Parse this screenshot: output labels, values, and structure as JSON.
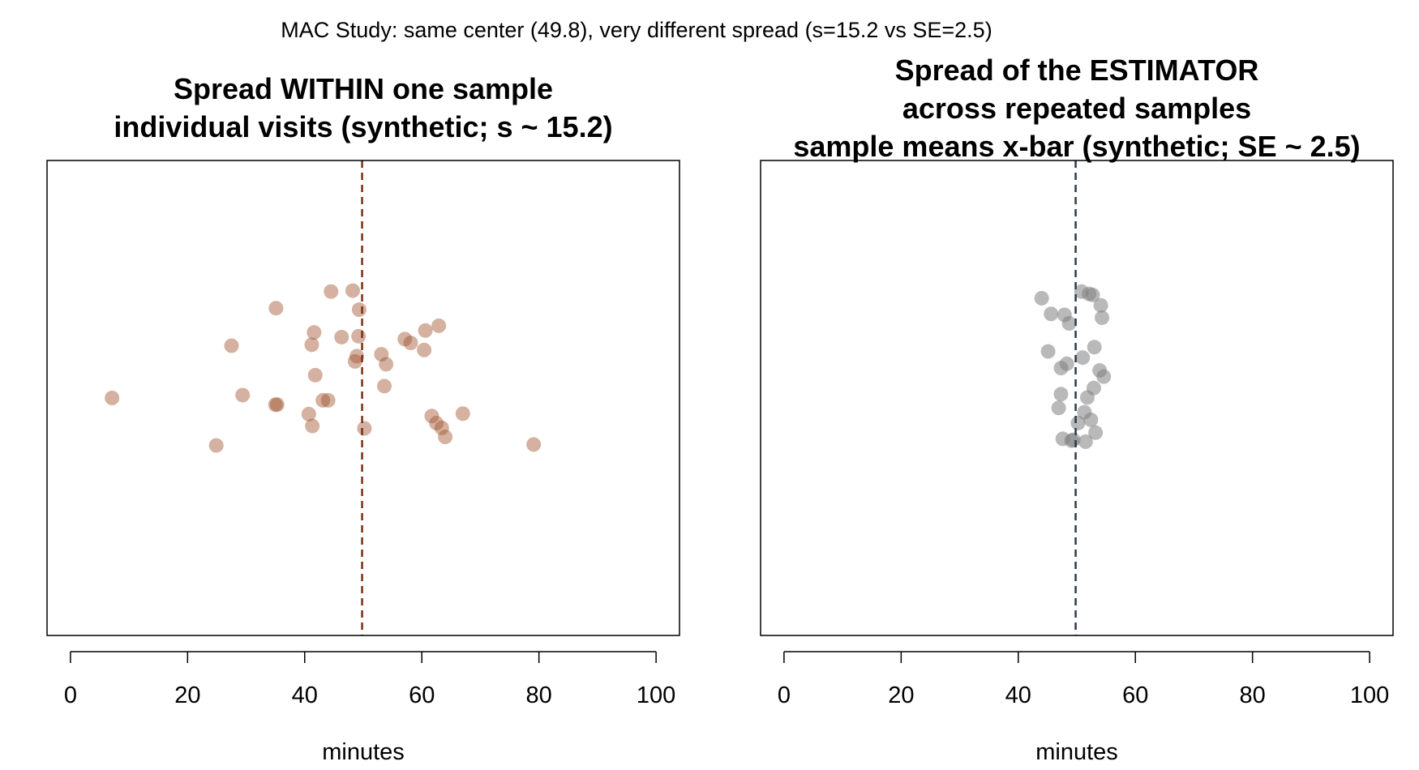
{
  "suptitle": "MAC Study: same center (49.8), very different spread (s=15.2 vs SE=2.5)",
  "chart_data": [
    {
      "type": "scatter",
      "title_lines": [
        "Spread WITHIN one sample",
        "individual visits (synthetic; s ~ 15.2)"
      ],
      "xlabel": "minutes",
      "ylabel": "",
      "xlim": [
        -4,
        104
      ],
      "x_ticks": [
        0,
        20,
        40,
        60,
        80,
        100
      ],
      "grid": false,
      "point_color": "#a0522d",
      "point_alpha": 0.45,
      "reference_line": {
        "x": 49.8,
        "color": "#7a2e12",
        "style": "dashed"
      },
      "points": [
        {
          "x": 7.1,
          "y": 0.0
        },
        {
          "x": 24.9,
          "y": -0.1
        },
        {
          "x": 27.5,
          "y": 0.11
        },
        {
          "x": 29.4,
          "y": 0.006
        },
        {
          "x": 35.1,
          "y": 0.189
        },
        {
          "x": 35.0,
          "y": -0.014
        },
        {
          "x": 35.3,
          "y": -0.014
        },
        {
          "x": 40.7,
          "y": -0.034
        },
        {
          "x": 41.3,
          "y": -0.059
        },
        {
          "x": 41.2,
          "y": 0.112
        },
        {
          "x": 41.6,
          "y": 0.138
        },
        {
          "x": 41.8,
          "y": 0.048
        },
        {
          "x": 43.1,
          "y": -0.005
        },
        {
          "x": 44.0,
          "y": -0.005
        },
        {
          "x": 44.5,
          "y": 0.224
        },
        {
          "x": 46.3,
          "y": 0.128
        },
        {
          "x": 48.2,
          "y": 0.226
        },
        {
          "x": 48.6,
          "y": 0.077
        },
        {
          "x": 48.9,
          "y": 0.088
        },
        {
          "x": 49.2,
          "y": 0.13
        },
        {
          "x": 49.3,
          "y": 0.186
        },
        {
          "x": 50.2,
          "y": -0.064
        },
        {
          "x": 53.1,
          "y": 0.092
        },
        {
          "x": 53.6,
          "y": 0.025
        },
        {
          "x": 53.9,
          "y": 0.071
        },
        {
          "x": 57.1,
          "y": 0.124
        },
        {
          "x": 58.1,
          "y": 0.116
        },
        {
          "x": 60.4,
          "y": 0.101
        },
        {
          "x": 60.6,
          "y": 0.142
        },
        {
          "x": 62.9,
          "y": 0.152
        },
        {
          "x": 61.7,
          "y": -0.038
        },
        {
          "x": 62.5,
          "y": -0.053
        },
        {
          "x": 63.4,
          "y": -0.063
        },
        {
          "x": 64.0,
          "y": -0.082
        },
        {
          "x": 67.0,
          "y": -0.033
        },
        {
          "x": 79.1,
          "y": -0.098
        }
      ]
    },
    {
      "type": "scatter",
      "title_lines": [
        "Spread of the ESTIMATOR",
        "across repeated samples",
        "sample means x-bar (synthetic; SE ~ 2.5)"
      ],
      "xlabel": "minutes",
      "ylabel": "",
      "xlim": [
        -4,
        104
      ],
      "x_ticks": [
        0,
        20,
        40,
        60,
        80,
        100
      ],
      "grid": false,
      "point_color": "#808080",
      "point_alpha": 0.55,
      "reference_line": {
        "x": 49.8,
        "color": "#2b3a4a",
        "style": "dashed"
      },
      "points": [
        {
          "x": 44.0,
          "y": 0.21
        },
        {
          "x": 45.1,
          "y": 0.098
        },
        {
          "x": 45.6,
          "y": 0.177
        },
        {
          "x": 46.9,
          "y": -0.021
        },
        {
          "x": 47.3,
          "y": 0.063
        },
        {
          "x": 47.6,
          "y": -0.086
        },
        {
          "x": 47.3,
          "y": 0.008
        },
        {
          "x": 47.9,
          "y": 0.175
        },
        {
          "x": 48.3,
          "y": 0.072
        },
        {
          "x": 48.7,
          "y": 0.157
        },
        {
          "x": 49.1,
          "y": -0.09
        },
        {
          "x": 49.4,
          "y": -0.088
        },
        {
          "x": 50.2,
          "y": -0.053
        },
        {
          "x": 50.8,
          "y": 0.224
        },
        {
          "x": 51.0,
          "y": 0.085
        },
        {
          "x": 51.3,
          "y": -0.03
        },
        {
          "x": 51.5,
          "y": -0.092
        },
        {
          "x": 51.8,
          "y": 0.001
        },
        {
          "x": 52.1,
          "y": 0.219
        },
        {
          "x": 52.4,
          "y": -0.046
        },
        {
          "x": 52.7,
          "y": 0.217
        },
        {
          "x": 52.9,
          "y": 0.021
        },
        {
          "x": 53.0,
          "y": 0.107
        },
        {
          "x": 53.2,
          "y": -0.073
        },
        {
          "x": 53.9,
          "y": 0.058
        },
        {
          "x": 54.1,
          "y": 0.195
        },
        {
          "x": 54.3,
          "y": 0.169
        },
        {
          "x": 54.6,
          "y": 0.045
        }
      ]
    }
  ]
}
